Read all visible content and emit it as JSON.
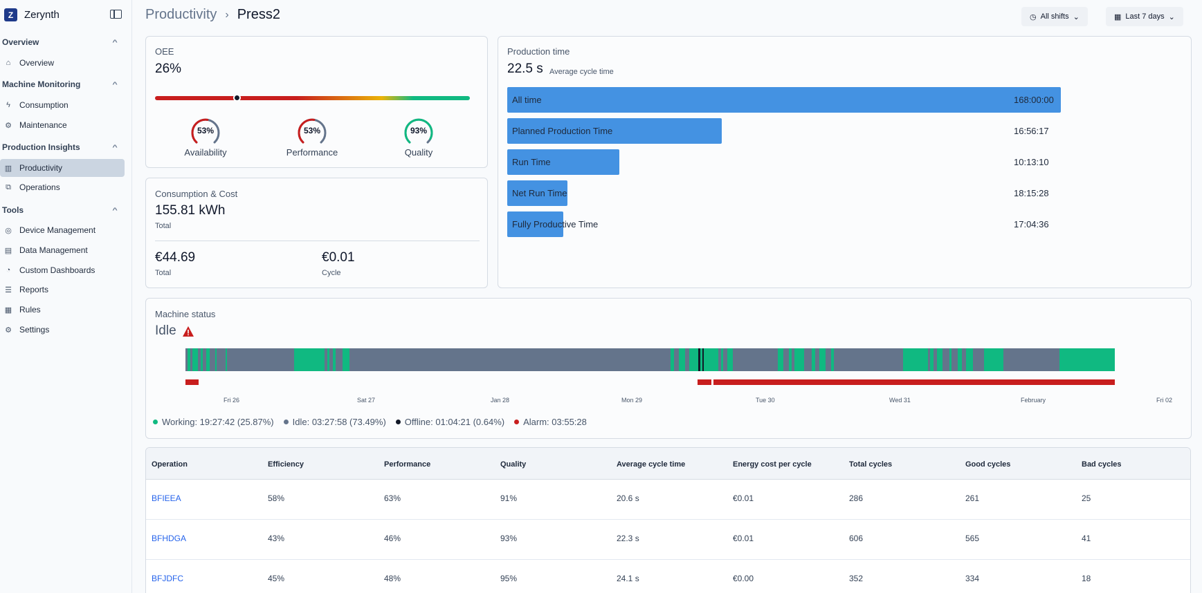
{
  "app": {
    "name": "Zerynth"
  },
  "sidebar": {
    "sections": [
      {
        "title": "Overview",
        "items": [
          {
            "label": "Overview"
          }
        ]
      },
      {
        "title": "Machine Monitoring",
        "items": [
          {
            "label": "Consumption"
          },
          {
            "label": "Maintenance"
          }
        ]
      },
      {
        "title": "Production Insights",
        "items": [
          {
            "label": "Productivity"
          },
          {
            "label": "Operations"
          }
        ]
      },
      {
        "title": "Tools",
        "items": [
          {
            "label": "Device Management"
          },
          {
            "label": "Data Management"
          },
          {
            "label": "Custom Dashboards"
          },
          {
            "label": "Reports"
          },
          {
            "label": "Rules"
          },
          {
            "label": "Settings"
          }
        ]
      }
    ]
  },
  "header": {
    "breadcrumb_parent": "Productivity",
    "breadcrumb_current": "Press2",
    "shift_filter": "All shifts",
    "date_filter": "Last 7 days"
  },
  "oee": {
    "label": "OEE",
    "value": "26%",
    "indicator_fraction": 0.26,
    "gauges": [
      {
        "value": "53%",
        "fraction": 0.53,
        "label": "Availability",
        "color": "#c81e1e"
      },
      {
        "value": "53%",
        "fraction": 0.53,
        "label": "Performance",
        "color": "#c81e1e"
      },
      {
        "value": "93%",
        "fraction": 0.93,
        "label": "Quality",
        "color": "#10b981"
      }
    ]
  },
  "consumption": {
    "label": "Consumption & Cost",
    "energy_value": "155.81 kWh",
    "energy_sub": "Total",
    "cost_total": "€44.69",
    "cost_total_sub": "Total",
    "cost_cycle": "€0.01",
    "cost_cycle_sub": "Cycle"
  },
  "production_time": {
    "label": "Production time",
    "avg_cycle_value": "22.5 s",
    "avg_cycle_label": "Average cycle time",
    "rows": [
      {
        "label": "All time",
        "value": "168:00:00",
        "fraction": 1.0
      },
      {
        "label": "Planned Production Time",
        "value": "16:56:17",
        "fraction": 0.387
      },
      {
        "label": "Run Time",
        "value": "10:13:10",
        "fraction": 0.203
      },
      {
        "label": "Net Run Time",
        "value": "18:15:28",
        "fraction": 0.109
      },
      {
        "label": "Fully Productive Time",
        "value": "17:04:36",
        "fraction": 0.101
      }
    ]
  },
  "machine_status": {
    "label": "Machine status",
    "status": "Idle",
    "colors": {
      "working": "#10b981",
      "idle": "#64748b",
      "offline": "#111827",
      "alarm": "#c81e1e"
    },
    "ticks": [
      "Fri 26",
      "Sat 27",
      "Jan 28",
      "Mon 29",
      "Tue 30",
      "Wed 31",
      "February",
      "Fri 02"
    ],
    "legend": [
      {
        "text": "Working: 19:27:42 (25.87%)",
        "color": "#10b981"
      },
      {
        "text": "Idle: 03:27:58 (73.49%)",
        "color": "#64748b"
      },
      {
        "text": "Offline: 01:04:21 (0.64%)",
        "color": "#111827"
      },
      {
        "text": "Alarm: 03:55:28",
        "color": "#c81e1e"
      }
    ]
  },
  "operations_table": {
    "headers": [
      "Operation",
      "Efficiency",
      "Performance",
      "Quality",
      "Average cycle time",
      "Energy cost per cycle",
      "Total cycles",
      "Good cycles",
      "Bad cycles"
    ],
    "rows": [
      [
        "BFIEEA",
        "58%",
        "63%",
        "91%",
        "20.6 s",
        "€0.01",
        "286",
        "261",
        "25"
      ],
      [
        "BFHDGA",
        "43%",
        "46%",
        "93%",
        "22.3 s",
        "€0.01",
        "606",
        "565",
        "41"
      ],
      [
        "BFJDFC",
        "45%",
        "48%",
        "95%",
        "24.1 s",
        "€0.00",
        "352",
        "334",
        "18"
      ]
    ]
  }
}
